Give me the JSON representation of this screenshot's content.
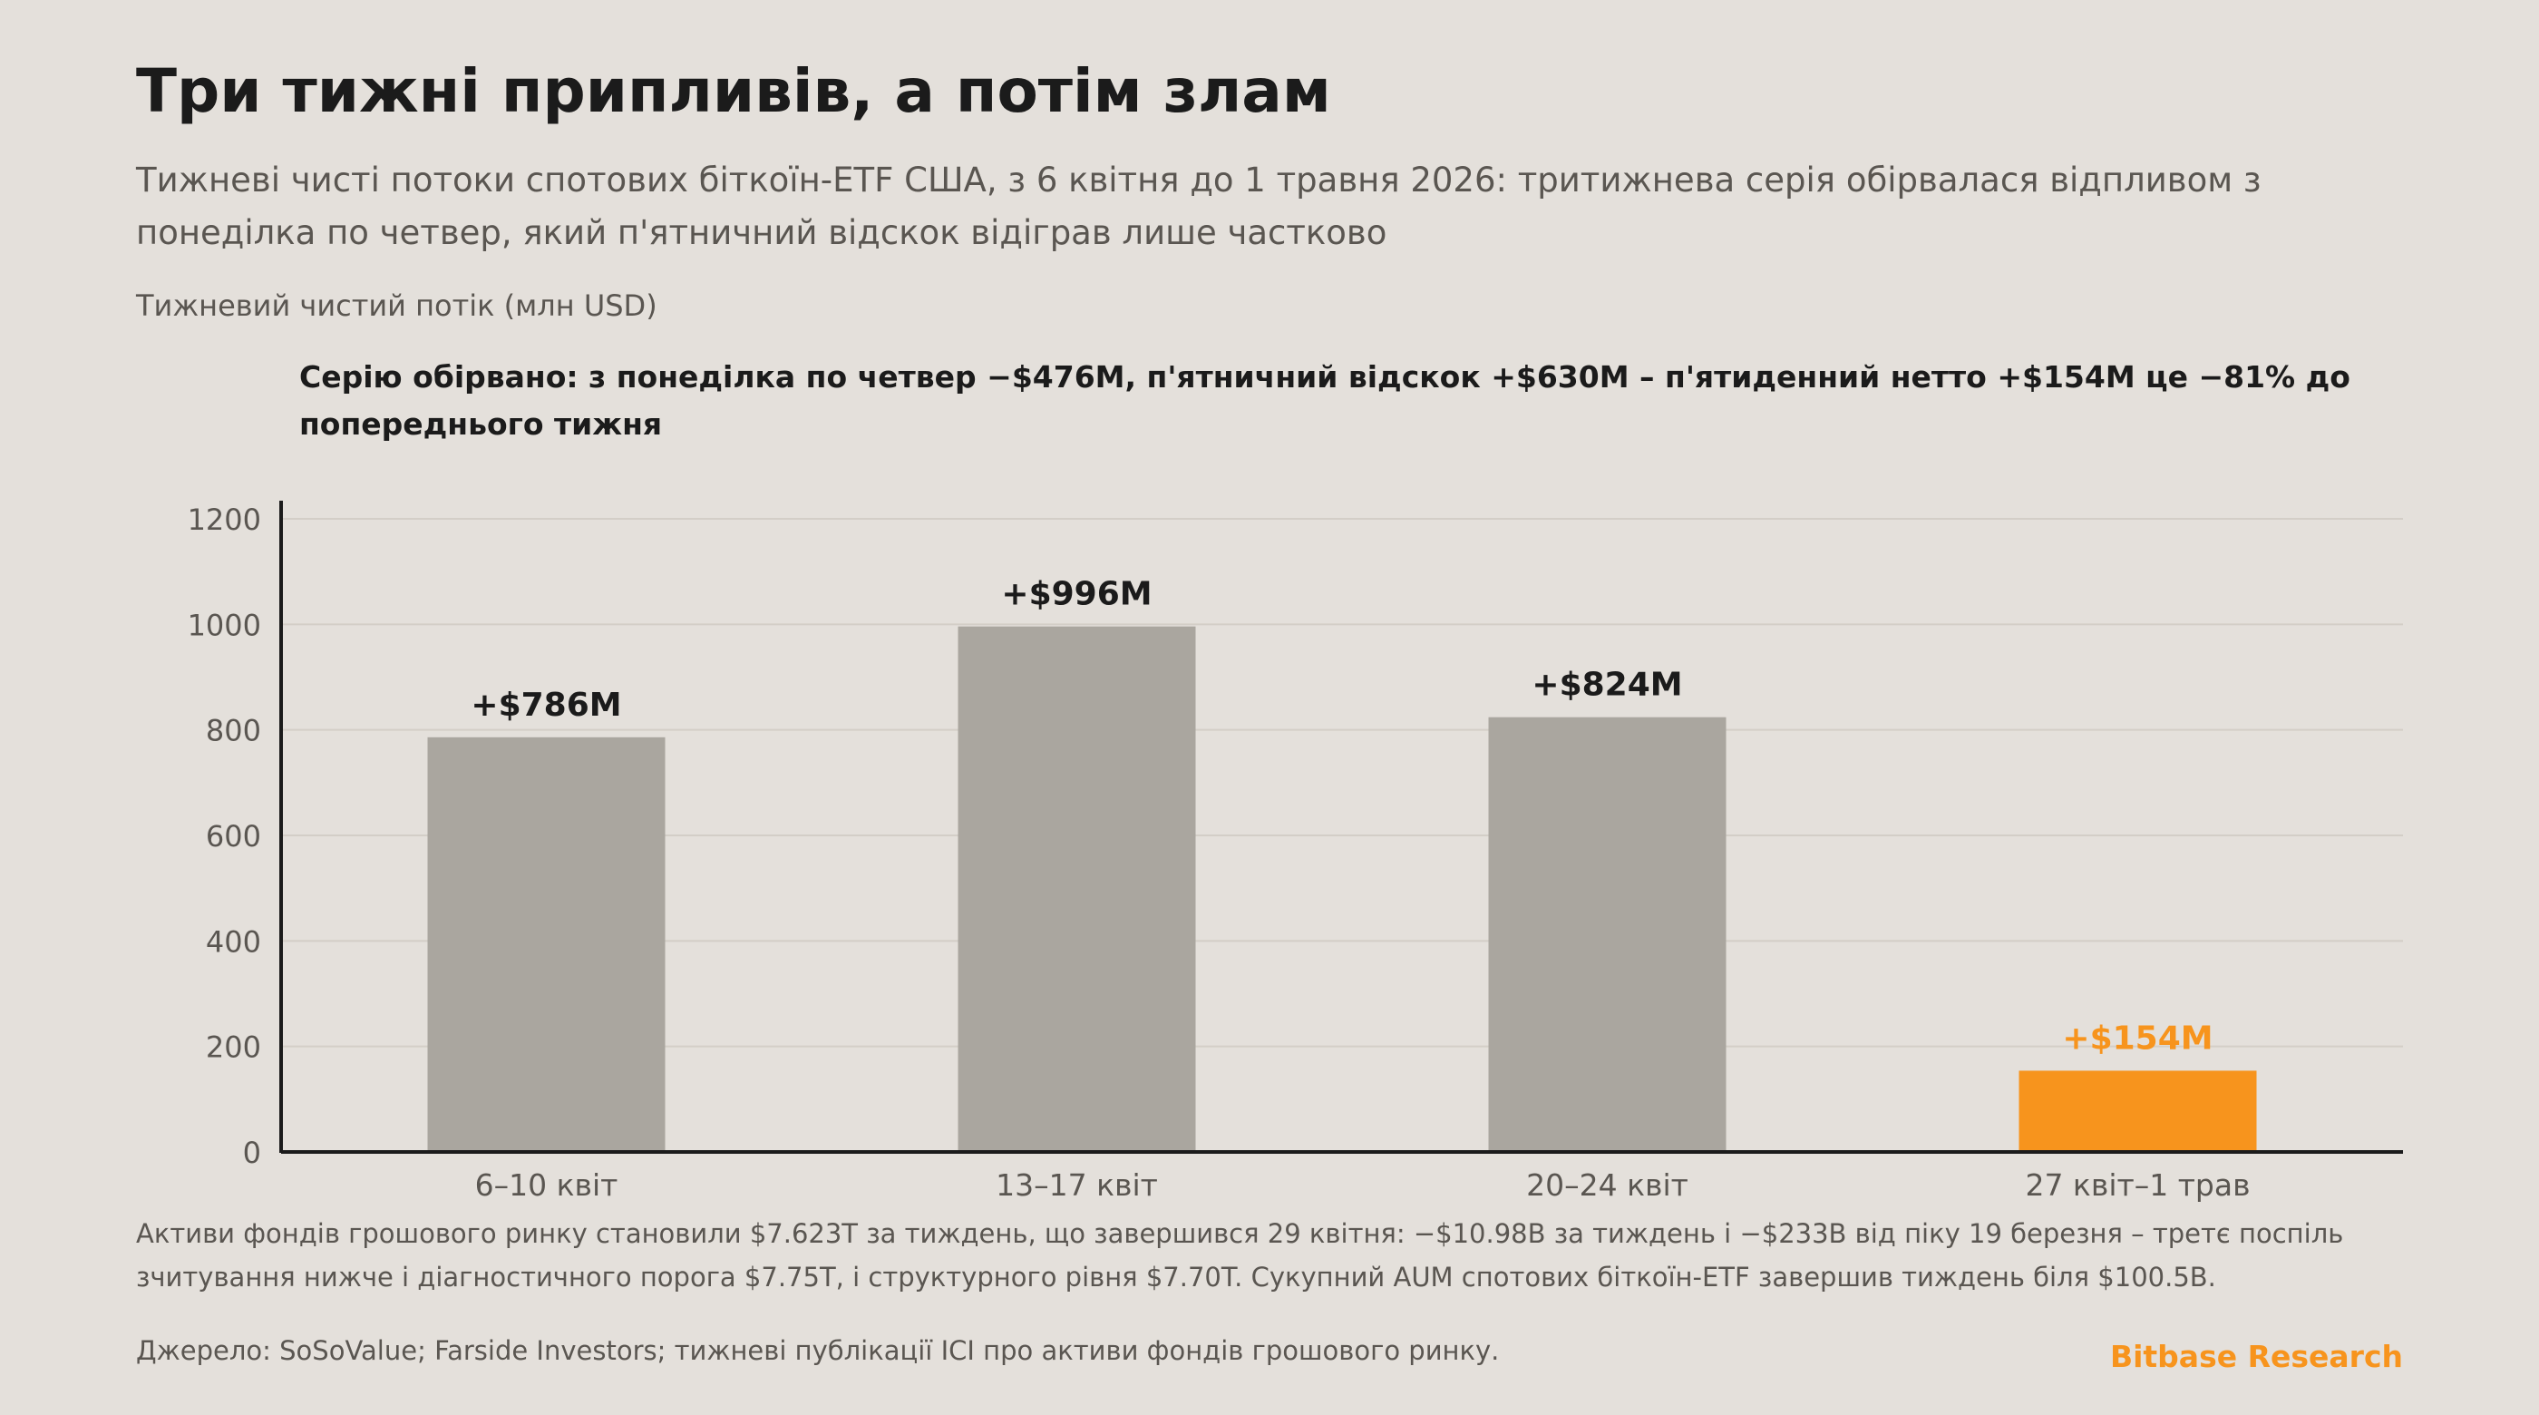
{
  "title": "Три тижні припливів, а потім злам",
  "subtitle": "Тижневі чисті потоки спотових біткоїн-ETF США, з 6 квітня до 1 травня 2026: тритижнева серія обірвалася відпливом з понеділка по четвер, який п'ятничний відскок відіграв лише частково",
  "annotation": "Серію обірвано: з понеділка по четвер −$476M, п'ятничний відскок +$630M – п'ятиденний нетто +$154M це −81% до попереднього тижня",
  "footnote": "Активи фондів грошового ринку становили $7.623T за тиждень, що завершився 29 квітня: −$10.98B за тиждень і −$233B від піку 19 березня – третє поспіль зчитування нижче і діагностичного порога $7.75T, і структурного рівня $7.70T. Сукупний AUM спотових біткоїн-ETF завершив тиждень біля $100.5B.",
  "source": "Джерело: SoSoValue; Farside Investors; тижневі публікації ICI про активи фондів грошового ринку.",
  "brand": "Bitbase Research",
  "colors": {
    "bar_default": "#aaa69f",
    "bar_highlight": "#f7941d",
    "label_default": "#1b1b1b",
    "label_highlight": "#f7941d",
    "axis": "#1b1b1b",
    "grid": "#d3cec7",
    "tick_text": "#5a5651"
  },
  "chart_data": {
    "type": "bar",
    "ylabel": "Тижневий чистий потік (млн USD)",
    "categories": [
      "6–10 квіт",
      "13–17 квіт",
      "20–24 квіт",
      "27 квіт–1 трав"
    ],
    "values": [
      786,
      996,
      824,
      154
    ],
    "value_labels": [
      "+$786M",
      "+$996M",
      "+$824M",
      "+$154M"
    ],
    "highlight_index": 3,
    "ylim": [
      0,
      1200
    ],
    "yticks": [
      0,
      200,
      400,
      600,
      800,
      1000,
      1200
    ],
    "grid": true
  }
}
